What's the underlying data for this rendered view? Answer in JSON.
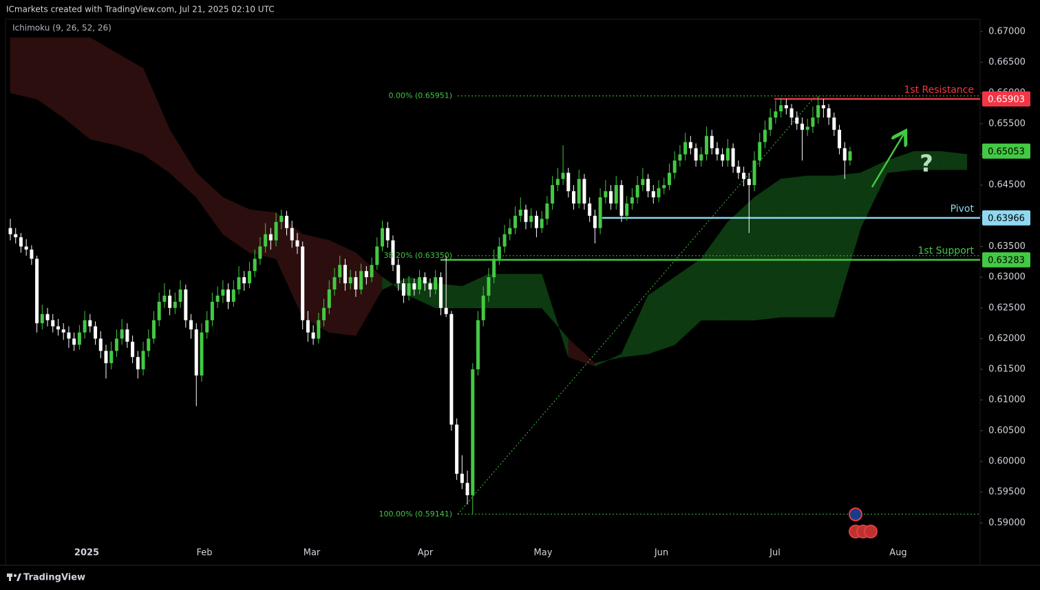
{
  "header": "ICmarkets created with TradingView.com, Jul 21, 2025 02:10 UTC",
  "footer": "TradingView",
  "chart_data": {
    "type": "candlestick",
    "indicator": "Ichimoku (9, 26, 52, 26)",
    "up_color": "#43c943",
    "down_color": "#ffffff",
    "ylim": [
      0.5831,
      0.672
    ],
    "yticks": [
      {
        "value": 0.59,
        "label": "0.59000"
      },
      {
        "value": 0.595,
        "label": "0.59500"
      },
      {
        "value": 0.6,
        "label": "0.60000"
      },
      {
        "value": 0.605,
        "label": "0.60500"
      },
      {
        "value": 0.61,
        "label": "0.61000"
      },
      {
        "value": 0.615,
        "label": "0.61500"
      },
      {
        "value": 0.62,
        "label": "0.62000"
      },
      {
        "value": 0.625,
        "label": "0.62500"
      },
      {
        "value": 0.63,
        "label": "0.63000"
      },
      {
        "value": 0.635,
        "label": "0.63500"
      },
      {
        "value": 0.64,
        "label": "0.64000"
      },
      {
        "value": 0.645,
        "label": "0.64500"
      },
      {
        "value": 0.65,
        "label": "0.65000"
      },
      {
        "value": 0.655,
        "label": "0.65500"
      },
      {
        "value": 0.66,
        "label": "0.66000"
      },
      {
        "value": 0.665,
        "label": "0.66500"
      },
      {
        "value": 0.67,
        "label": "0.67000"
      }
    ],
    "xtick_labels": [
      "2025",
      "Feb",
      "Mar",
      "Apr",
      "May",
      "Jun",
      "Jul",
      "Aug"
    ],
    "candles": [
      [
        0.638,
        0.6395,
        0.636,
        0.637
      ],
      [
        0.637,
        0.638,
        0.6355,
        0.6365
      ],
      [
        0.6365,
        0.6372,
        0.634,
        0.635
      ],
      [
        0.635,
        0.6362,
        0.6335,
        0.6345
      ],
      [
        0.6345,
        0.6352,
        0.632,
        0.633
      ],
      [
        0.633,
        0.6335,
        0.621,
        0.6225
      ],
      [
        0.6225,
        0.6255,
        0.6215,
        0.624
      ],
      [
        0.624,
        0.625,
        0.622,
        0.623
      ],
      [
        0.623,
        0.624,
        0.621,
        0.622
      ],
      [
        0.622,
        0.6232,
        0.6205,
        0.6215
      ],
      [
        0.6215,
        0.6225,
        0.6198,
        0.621
      ],
      [
        0.621,
        0.622,
        0.6185,
        0.62
      ],
      [
        0.62,
        0.621,
        0.618,
        0.619
      ],
      [
        0.619,
        0.6222,
        0.6182,
        0.621
      ],
      [
        0.621,
        0.6245,
        0.62,
        0.623
      ],
      [
        0.623,
        0.624,
        0.621,
        0.622
      ],
      [
        0.622,
        0.6228,
        0.619,
        0.62
      ],
      [
        0.62,
        0.6212,
        0.6168,
        0.618
      ],
      [
        0.618,
        0.619,
        0.6135,
        0.616
      ],
      [
        0.616,
        0.6195,
        0.615,
        0.618
      ],
      [
        0.618,
        0.6215,
        0.617,
        0.62
      ],
      [
        0.62,
        0.6232,
        0.619,
        0.6215
      ],
      [
        0.6215,
        0.6225,
        0.6185,
        0.6195
      ],
      [
        0.6195,
        0.6205,
        0.616,
        0.617
      ],
      [
        0.617,
        0.618,
        0.6135,
        0.615
      ],
      [
        0.615,
        0.6195,
        0.614,
        0.618
      ],
      [
        0.618,
        0.6215,
        0.617,
        0.62
      ],
      [
        0.62,
        0.6245,
        0.6192,
        0.623
      ],
      [
        0.623,
        0.6275,
        0.622,
        0.626
      ],
      [
        0.626,
        0.629,
        0.625,
        0.627
      ],
      [
        0.627,
        0.628,
        0.6238,
        0.625
      ],
      [
        0.625,
        0.6275,
        0.624,
        0.626
      ],
      [
        0.626,
        0.6295,
        0.625,
        0.628
      ],
      [
        0.628,
        0.6288,
        0.6218,
        0.623
      ],
      [
        0.623,
        0.624,
        0.62,
        0.6215
      ],
      [
        0.6215,
        0.6225,
        0.609,
        0.614
      ],
      [
        0.614,
        0.6225,
        0.613,
        0.621
      ],
      [
        0.621,
        0.6245,
        0.62,
        0.623
      ],
      [
        0.623,
        0.6275,
        0.622,
        0.626
      ],
      [
        0.626,
        0.6285,
        0.625,
        0.627
      ],
      [
        0.627,
        0.6295,
        0.6258,
        0.628
      ],
      [
        0.628,
        0.629,
        0.6248,
        0.626
      ],
      [
        0.626,
        0.6295,
        0.6252,
        0.628
      ],
      [
        0.628,
        0.6318,
        0.6272,
        0.63
      ],
      [
        0.63,
        0.631,
        0.6278,
        0.629
      ],
      [
        0.629,
        0.6325,
        0.6282,
        0.631
      ],
      [
        0.631,
        0.6345,
        0.63,
        0.633
      ],
      [
        0.633,
        0.6365,
        0.632,
        0.635
      ],
      [
        0.635,
        0.6388,
        0.634,
        0.637
      ],
      [
        0.637,
        0.638,
        0.6345,
        0.636
      ],
      [
        0.636,
        0.6405,
        0.635,
        0.639
      ],
      [
        0.639,
        0.641,
        0.6378,
        0.64
      ],
      [
        0.64,
        0.6408,
        0.6368,
        0.638
      ],
      [
        0.638,
        0.6392,
        0.6348,
        0.636
      ],
      [
        0.636,
        0.6372,
        0.6338,
        0.635
      ],
      [
        0.635,
        0.6358,
        0.6215,
        0.623
      ],
      [
        0.623,
        0.6245,
        0.6195,
        0.621
      ],
      [
        0.621,
        0.6222,
        0.619,
        0.62
      ],
      [
        0.62,
        0.6242,
        0.6192,
        0.623
      ],
      [
        0.623,
        0.6265,
        0.622,
        0.625
      ],
      [
        0.625,
        0.6295,
        0.624,
        0.628
      ],
      [
        0.628,
        0.6315,
        0.627,
        0.63
      ],
      [
        0.63,
        0.6335,
        0.629,
        0.632
      ],
      [
        0.632,
        0.633,
        0.6278,
        0.629
      ],
      [
        0.629,
        0.6312,
        0.628,
        0.63
      ],
      [
        0.63,
        0.631,
        0.6268,
        0.628
      ],
      [
        0.628,
        0.6322,
        0.6272,
        0.631
      ],
      [
        0.631,
        0.6318,
        0.6288,
        0.63
      ],
      [
        0.63,
        0.6332,
        0.6292,
        0.632
      ],
      [
        0.632,
        0.6365,
        0.6312,
        0.635
      ],
      [
        0.635,
        0.6392,
        0.6342,
        0.638
      ],
      [
        0.638,
        0.639,
        0.6348,
        0.636
      ],
      [
        0.636,
        0.6368,
        0.631,
        0.632
      ],
      [
        0.632,
        0.633,
        0.6278,
        0.629
      ],
      [
        0.629,
        0.6298,
        0.6258,
        0.627
      ],
      [
        0.627,
        0.6302,
        0.6262,
        0.629
      ],
      [
        0.629,
        0.6298,
        0.627,
        0.628
      ],
      [
        0.628,
        0.6312,
        0.6272,
        0.63
      ],
      [
        0.63,
        0.6308,
        0.6278,
        0.629
      ],
      [
        0.629,
        0.6298,
        0.6268,
        0.628
      ],
      [
        0.628,
        0.6312,
        0.6272,
        0.63
      ],
      [
        0.63,
        0.6308,
        0.6238,
        0.625
      ],
      [
        0.625,
        0.6335,
        0.6235,
        0.624
      ],
      [
        0.624,
        0.6245,
        0.605,
        0.606
      ],
      [
        0.606,
        0.607,
        0.597,
        0.598
      ],
      [
        0.598,
        0.601,
        0.5955,
        0.5965
      ],
      [
        0.5965,
        0.5985,
        0.593,
        0.5945
      ],
      [
        0.5945,
        0.616,
        0.5914,
        0.615
      ],
      [
        0.615,
        0.6245,
        0.614,
        0.623
      ],
      [
        0.623,
        0.6285,
        0.622,
        0.627
      ],
      [
        0.627,
        0.6315,
        0.626,
        0.63
      ],
      [
        0.63,
        0.6345,
        0.629,
        0.633
      ],
      [
        0.633,
        0.6365,
        0.632,
        0.635
      ],
      [
        0.635,
        0.6385,
        0.634,
        0.637
      ],
      [
        0.637,
        0.6395,
        0.636,
        0.638
      ],
      [
        0.638,
        0.6415,
        0.637,
        0.64
      ],
      [
        0.64,
        0.643,
        0.639,
        0.641
      ],
      [
        0.641,
        0.6418,
        0.6378,
        0.639
      ],
      [
        0.639,
        0.6412,
        0.638,
        0.64
      ],
      [
        0.64,
        0.6408,
        0.6365,
        0.638
      ],
      [
        0.638,
        0.6408,
        0.6372,
        0.6395
      ],
      [
        0.6395,
        0.6432,
        0.6385,
        0.642
      ],
      [
        0.642,
        0.6465,
        0.641,
        0.645
      ],
      [
        0.645,
        0.6478,
        0.644,
        0.646
      ],
      [
        0.646,
        0.6515,
        0.645,
        0.647
      ],
      [
        0.647,
        0.6478,
        0.643,
        0.644
      ],
      [
        0.644,
        0.645,
        0.641,
        0.642
      ],
      [
        0.642,
        0.6475,
        0.6412,
        0.646
      ],
      [
        0.646,
        0.6468,
        0.641,
        0.642
      ],
      [
        0.642,
        0.643,
        0.639,
        0.64
      ],
      [
        0.64,
        0.641,
        0.6355,
        0.638
      ],
      [
        0.638,
        0.6445,
        0.637,
        0.643
      ],
      [
        0.643,
        0.6458,
        0.642,
        0.644
      ],
      [
        0.644,
        0.645,
        0.641,
        0.642
      ],
      [
        0.642,
        0.6465,
        0.641,
        0.645
      ],
      [
        0.645,
        0.6458,
        0.639,
        0.64
      ],
      [
        0.64,
        0.6432,
        0.6392,
        0.642
      ],
      [
        0.642,
        0.6445,
        0.641,
        0.643
      ],
      [
        0.643,
        0.6465,
        0.642,
        0.645
      ],
      [
        0.645,
        0.6478,
        0.644,
        0.646
      ],
      [
        0.646,
        0.6468,
        0.643,
        0.644
      ],
      [
        0.644,
        0.645,
        0.642,
        0.643
      ],
      [
        0.643,
        0.6458,
        0.6422,
        0.6445
      ],
      [
        0.6445,
        0.6462,
        0.6435,
        0.645
      ],
      [
        0.645,
        0.6485,
        0.6442,
        0.647
      ],
      [
        0.647,
        0.6505,
        0.646,
        0.649
      ],
      [
        0.649,
        0.6515,
        0.648,
        0.65
      ],
      [
        0.65,
        0.6535,
        0.649,
        0.652
      ],
      [
        0.652,
        0.653,
        0.65,
        0.651
      ],
      [
        0.651,
        0.6518,
        0.648,
        0.649
      ],
      [
        0.649,
        0.6512,
        0.648,
        0.65
      ],
      [
        0.65,
        0.6545,
        0.649,
        0.653
      ],
      [
        0.653,
        0.654,
        0.65,
        0.651
      ],
      [
        0.651,
        0.652,
        0.649,
        0.65
      ],
      [
        0.65,
        0.651,
        0.648,
        0.649
      ],
      [
        0.649,
        0.6525,
        0.648,
        0.651
      ],
      [
        0.651,
        0.6518,
        0.647,
        0.648
      ],
      [
        0.648,
        0.649,
        0.646,
        0.647
      ],
      [
        0.647,
        0.648,
        0.6448,
        0.646
      ],
      [
        0.646,
        0.647,
        0.6372,
        0.645
      ],
      [
        0.645,
        0.6505,
        0.644,
        0.649
      ],
      [
        0.649,
        0.6535,
        0.648,
        0.652
      ],
      [
        0.652,
        0.6555,
        0.651,
        0.654
      ],
      [
        0.654,
        0.6575,
        0.653,
        0.656
      ],
      [
        0.656,
        0.6588,
        0.655,
        0.657
      ],
      [
        0.657,
        0.6592,
        0.656,
        0.658
      ],
      [
        0.658,
        0.659,
        0.6565,
        0.6575
      ],
      [
        0.6575,
        0.6582,
        0.6548,
        0.656
      ],
      [
        0.656,
        0.657,
        0.654,
        0.655
      ],
      [
        0.655,
        0.656,
        0.649,
        0.654
      ],
      [
        0.654,
        0.6558,
        0.653,
        0.6545
      ],
      [
        0.6545,
        0.6578,
        0.6535,
        0.656
      ],
      [
        0.656,
        0.6595,
        0.655,
        0.658
      ],
      [
        0.658,
        0.659,
        0.656,
        0.6575
      ],
      [
        0.6575,
        0.6582,
        0.6548,
        0.656
      ],
      [
        0.656,
        0.6568,
        0.653,
        0.654
      ],
      [
        0.654,
        0.6548,
        0.65,
        0.651
      ],
      [
        0.651,
        0.652,
        0.646,
        0.649
      ],
      [
        0.649,
        0.6512,
        0.6482,
        0.6505
      ]
    ],
    "cloud": {
      "bull_color": "#0d3a10",
      "bear_color": "#2c0e0e",
      "span_a": [
        0.66,
        0.659,
        0.656,
        0.6525,
        0.6515,
        0.65,
        0.647,
        0.643,
        0.637,
        0.634,
        0.633,
        0.6235,
        0.621,
        0.6205,
        0.628,
        0.63,
        0.629,
        0.6285,
        0.6305,
        0.6305,
        0.6305,
        0.617,
        0.6155,
        0.6175,
        0.627,
        0.63,
        0.633,
        0.639,
        0.643,
        0.646,
        0.6465,
        0.6465,
        0.647,
        0.649,
        0.6505,
        0.6505,
        0.65
      ],
      "span_b": [
        0.669,
        0.669,
        0.669,
        0.669,
        0.6665,
        0.664,
        0.654,
        0.647,
        0.643,
        0.641,
        0.6405,
        0.637,
        0.636,
        0.634,
        0.63,
        0.627,
        0.625,
        0.625,
        0.625,
        0.625,
        0.625,
        0.62,
        0.616,
        0.617,
        0.6175,
        0.619,
        0.623,
        0.623,
        0.623,
        0.6235,
        0.6235,
        0.6235,
        0.638,
        0.647,
        0.6475,
        0.6475,
        0.6475
      ]
    },
    "fib_levels": [
      {
        "label": "0.00% (0.65951)",
        "value": 0.65951
      },
      {
        "label": "38.20% (0.63350)",
        "value": 0.6335
      },
      {
        "label": "100.00% (0.59141)",
        "value": 0.59141
      }
    ],
    "fib_color": "#43c943",
    "levels": [
      {
        "name": "1st Resistance",
        "value": 0.65903,
        "color": "#f23645"
      },
      {
        "name": "Pivot",
        "value": 0.63966,
        "color": "#8fd8f0"
      },
      {
        "name": "1st Support",
        "value": 0.63283,
        "color": "#43c943"
      }
    ],
    "last_price": 0.65053,
    "annotation": "?"
  }
}
